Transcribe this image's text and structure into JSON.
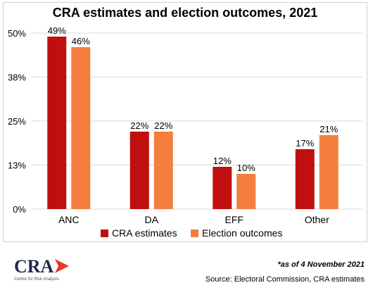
{
  "chart_data": {
    "type": "bar",
    "title": "CRA estimates and election outcomes, 2021",
    "categories": [
      "ANC",
      "DA",
      "EFF",
      "Other"
    ],
    "series": [
      {
        "name": "CRA estimates",
        "values": [
          49,
          22,
          12,
          17
        ],
        "labels": [
          "49%",
          "22%",
          "12%",
          "17%"
        ],
        "color": "#c00f0f"
      },
      {
        "name": "Election outcomes",
        "values": [
          46,
          22,
          10,
          21
        ],
        "labels": [
          "46%",
          "22%",
          "10%",
          "21%"
        ],
        "color": "#f47e3e"
      }
    ],
    "yticks": [
      {
        "value": 0,
        "label": "0%"
      },
      {
        "value": 12.5,
        "label": "13%"
      },
      {
        "value": 25,
        "label": "25%"
      },
      {
        "value": 37.5,
        "label": "38%"
      },
      {
        "value": 50,
        "label": "50%"
      }
    ],
    "ylim": [
      0,
      50
    ],
    "xlabel": "",
    "ylabel": "",
    "grid": true,
    "legend_position": "bottom"
  },
  "logo": {
    "text": "CRA",
    "subtitle": "Centre for Risk Analysis",
    "arrow_color": "#e8392a"
  },
  "footer": {
    "note": "*as of 4 November 2021",
    "source": "Source: Electoral Commission, CRA estimates"
  }
}
